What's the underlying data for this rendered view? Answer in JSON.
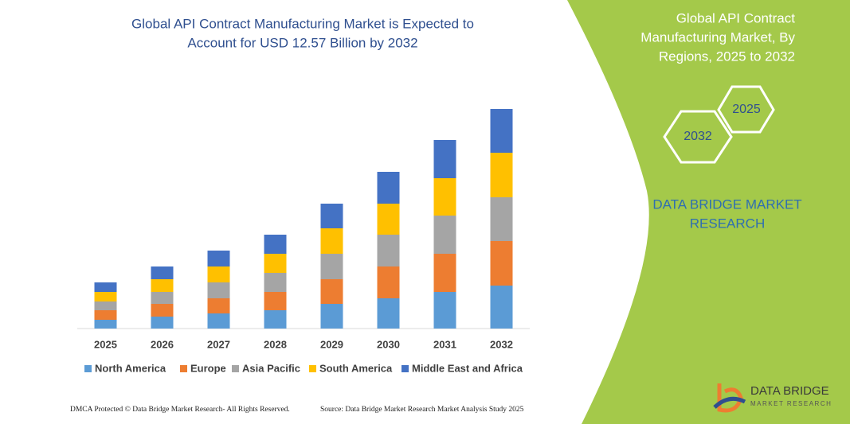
{
  "chart_data": {
    "type": "stacked-bar",
    "title": [
      "Global API Contract Manufacturing Market is Expected to",
      "Account for USD 12.57 Billion by 2032"
    ],
    "categories": [
      "2025",
      "2026",
      "2027",
      "2028",
      "2029",
      "2030",
      "2031",
      "2032"
    ],
    "series": [
      {
        "name": "North America",
        "color": "#5b9bd5",
        "values": [
          11,
          15,
          19,
          23,
          31,
          38,
          46,
          54
        ]
      },
      {
        "name": "Europe",
        "color": "#ed7d31",
        "values": [
          12,
          16,
          19,
          23,
          31,
          40,
          48,
          56
        ]
      },
      {
        "name": "Asia Pacific",
        "color": "#a5a5a5",
        "values": [
          11,
          15,
          20,
          24,
          32,
          40,
          48,
          55
        ]
      },
      {
        "name": "South America",
        "color": "#ffc000",
        "values": [
          12,
          16,
          20,
          24,
          32,
          39,
          47,
          56
        ]
      },
      {
        "name": "Middle East and Africa",
        "color": "#4472c4",
        "values": [
          12,
          16,
          20,
          24,
          31,
          40,
          48,
          55
        ]
      }
    ]
  },
  "side_panel": {
    "heading": [
      "Global API Contract",
      "Manufacturing Market, By",
      "Regions, 2025 to 2032"
    ],
    "hexagons": [
      "2032",
      "2025"
    ],
    "brand": [
      "DATA BRIDGE MARKET",
      "RESEARCH"
    ]
  },
  "footer": {
    "left": "DMCA Protected © Data Bridge Market Research-  All Rights Reserved.",
    "right": "Source: Data Bridge Market Research  Market Analysis Study 2025"
  },
  "logo": {
    "name": "DATA BRIDGE",
    "tagline": "MARKET RESEARCH"
  }
}
